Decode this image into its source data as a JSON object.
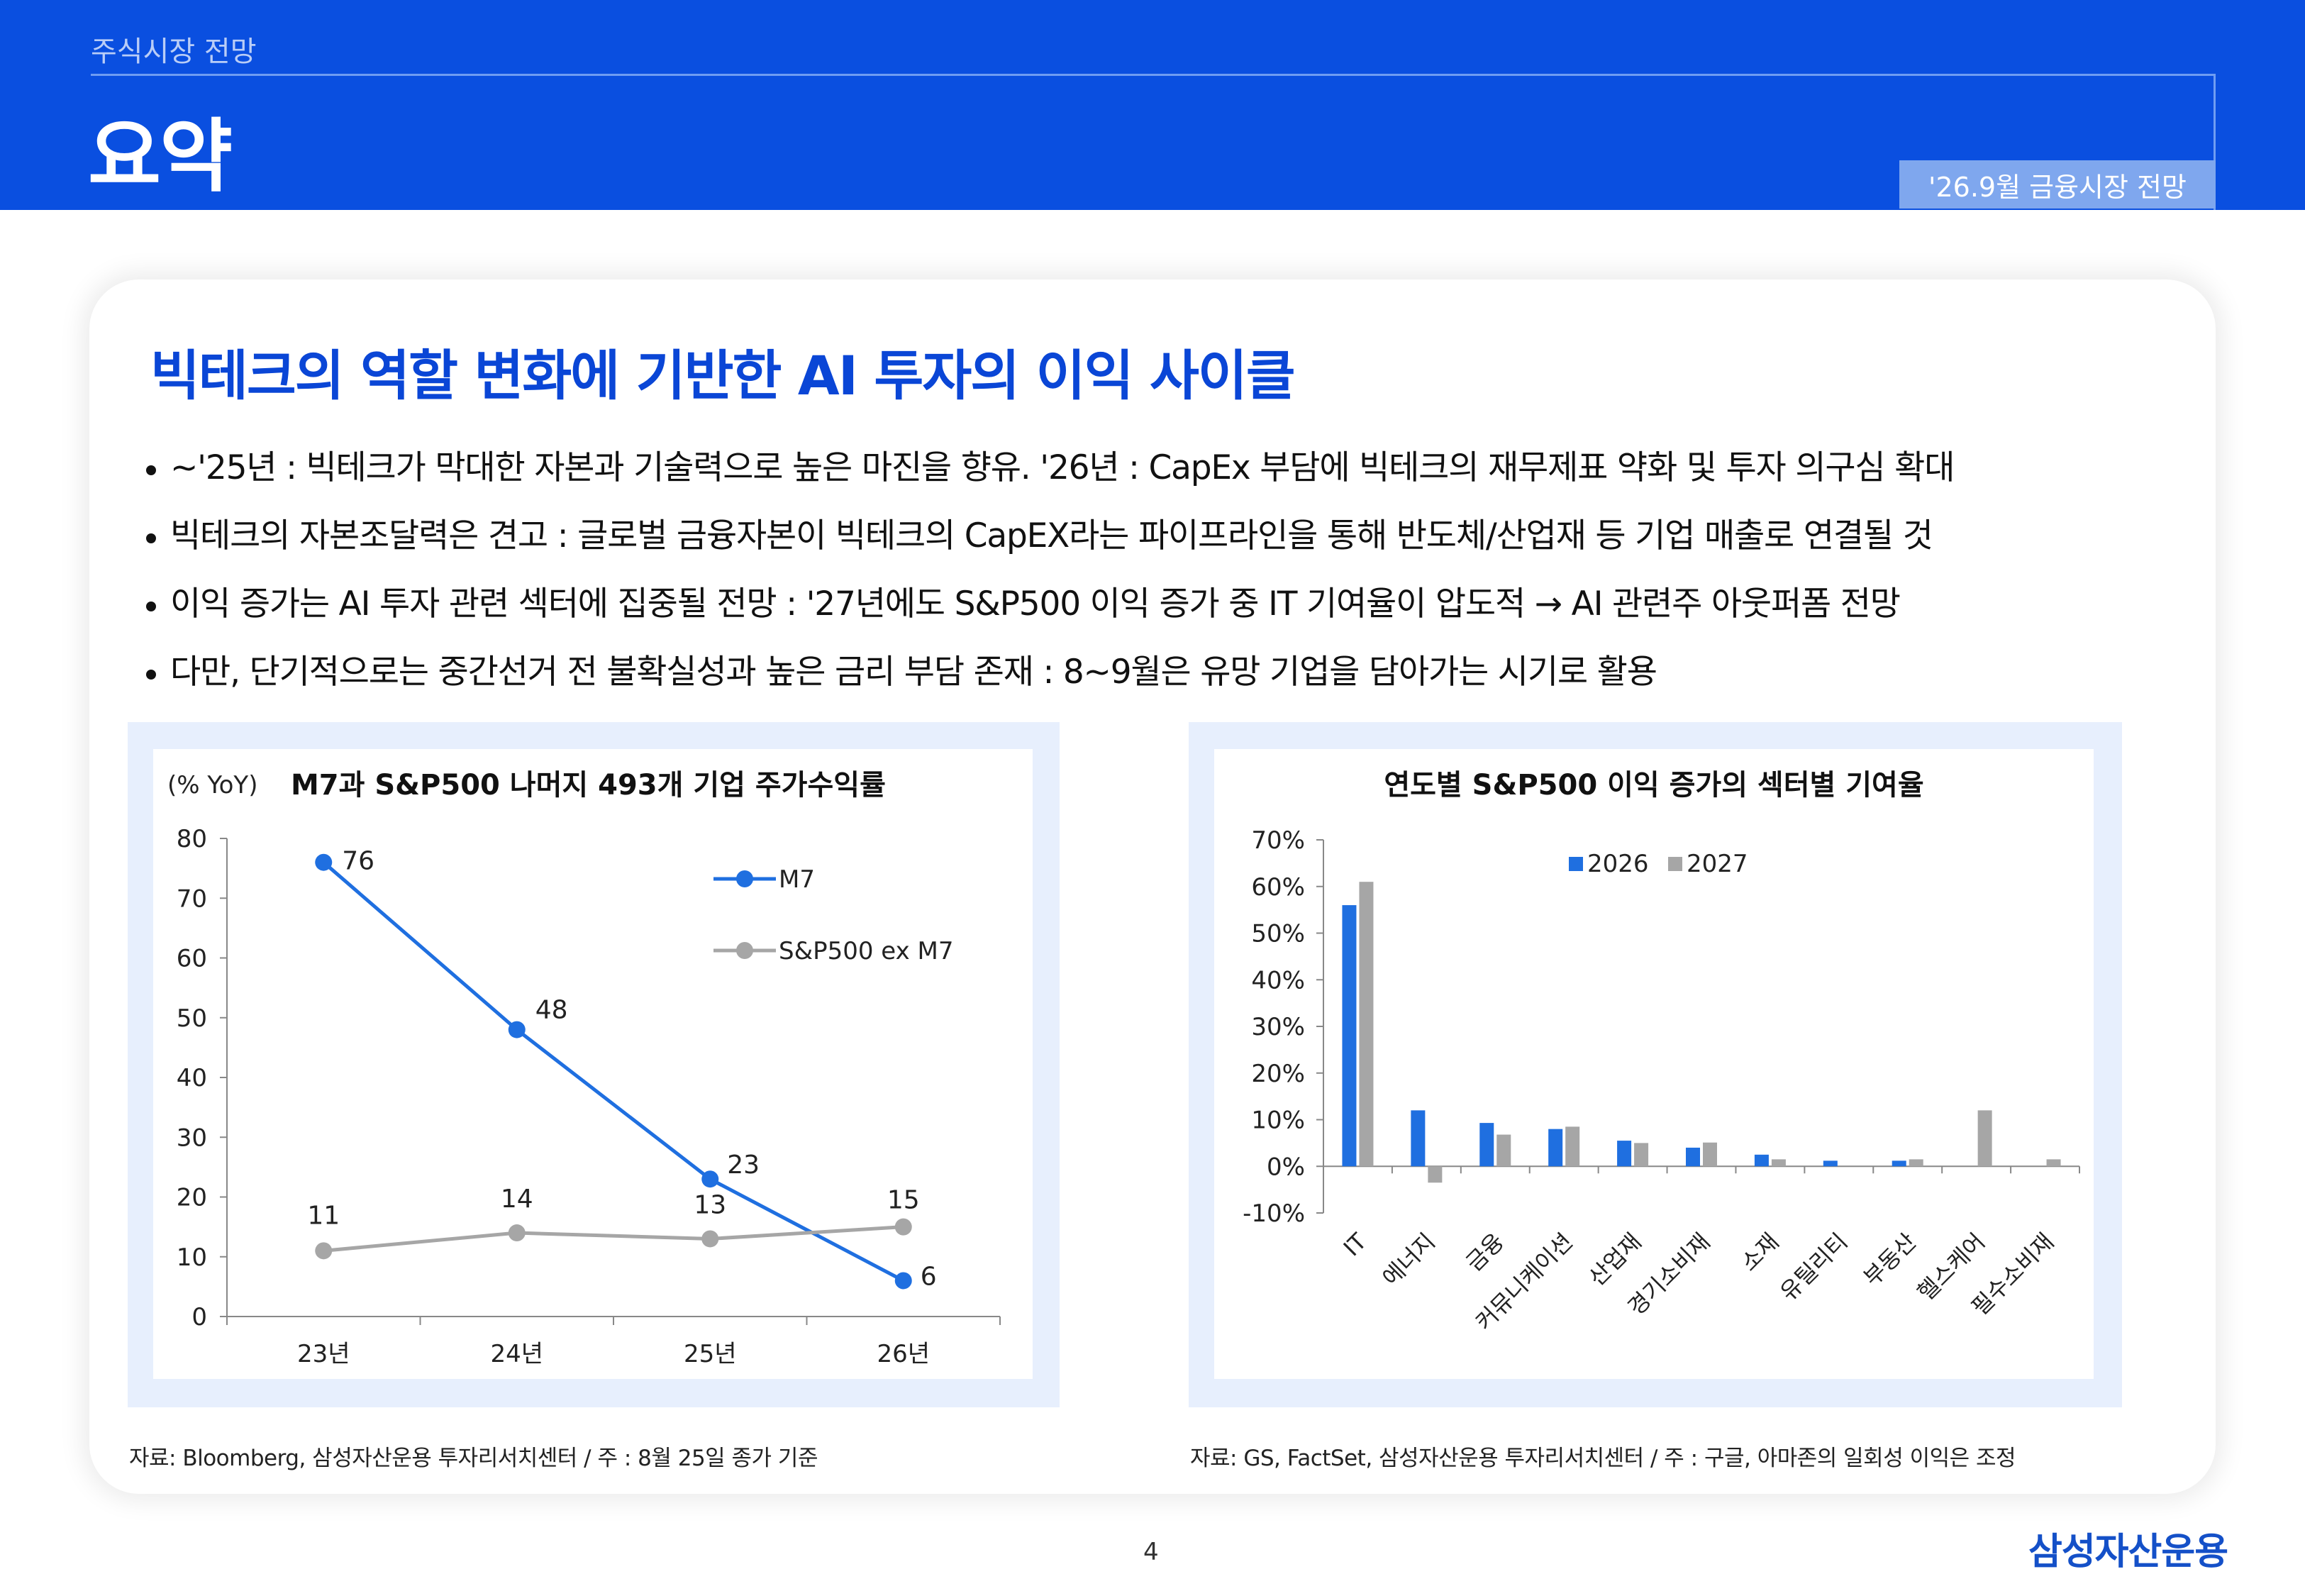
{
  "header": {
    "section": "주식시장 전망",
    "title": "요약",
    "report": "'26.9월 금융시장 전망"
  },
  "headline": "빅테크의 역할 변화에 기반한 AI 투자의 이익 사이클",
  "bullets": [
    "~'25년 : 빅테크가 막대한 자본과 기술력으로 높은 마진을 향유. '26년 : CapEx 부담에 빅테크의 재무제표 약화 및 투자 의구심 확대",
    "빅테크의 자본조달력은 견고 : 글로벌 금융자본이 빅테크의 CapEX라는 파이프라인을 통해 반도체/산업재 등 기업 매출로 연결될 것",
    "이익 증가는 AI 투자 관련 섹터에 집중될 전망 : '27년에도 S&P500 이익 증가 중 IT 기여율이 압도적 → AI 관련주 아웃퍼폼 전망",
    "다만, 단기적으로는 중간선거 전 불확실성과 높은 금리 부담 존재 : 8~9월은 유망 기업을 담아가는 시기로 활용"
  ],
  "colors": {
    "header_blue": "#0a4fe0",
    "headline_blue": "#0a46d6",
    "series_blue": "#1f6fe0",
    "series_gray": "#a6a6a6"
  },
  "chart_data": [
    {
      "type": "line",
      "title": "M7과 S&P500 나머지 493개 기업 주가수익률",
      "ylabel": "(% YoY)",
      "x": [
        "23년",
        "24년",
        "25년",
        "26년"
      ],
      "ylim": [
        0,
        80
      ],
      "yticks": [
        "0",
        "10",
        "20",
        "30",
        "40",
        "50",
        "60",
        "70",
        "80"
      ],
      "legend_position": "top-right",
      "series": [
        {
          "name": "M7",
          "values": [
            76,
            48,
            23,
            6
          ],
          "color": "#1f6fe0"
        },
        {
          "name": "S&P500 ex M7",
          "values": [
            11,
            14,
            13,
            15
          ],
          "color": "#a6a6a6"
        }
      ]
    },
    {
      "type": "bar",
      "title": "연도별 S&P500 이익 증가의 섹터별 기여율",
      "categories": [
        "IT",
        "에너지",
        "금융",
        "커뮤니케이션",
        "산업재",
        "경기소비재",
        "소재",
        "유틸리티",
        "부동산",
        "헬스케어",
        "필수소비재"
      ],
      "ylim": [
        -10,
        70
      ],
      "yticks": [
        "-10%",
        "0%",
        "10%",
        "20%",
        "30%",
        "40%",
        "50%",
        "60%",
        "70%"
      ],
      "legend_position": "top",
      "series": [
        {
          "name": "2026",
          "values": [
            56,
            12,
            9.3,
            8,
            5.5,
            4,
            2.5,
            1.2,
            1.2,
            0,
            0
          ],
          "color": "#1f6fe0"
        },
        {
          "name": "2027",
          "values": [
            61,
            -3.5,
            6.8,
            8.5,
            5,
            5.1,
            1.5,
            0,
            1.5,
            12,
            1.5
          ],
          "color": "#a6a6a6"
        }
      ]
    }
  ],
  "sources": {
    "left": "자료: Bloomberg, 삼성자산운용 투자리서치센터 / 주 : 8월 25일 종가 기준",
    "right": "자료: GS, FactSet, 삼성자산운용 투자리서치센터 / 주 : 구글, 아마존의 일회성 이익은 조정"
  },
  "page_number": "4",
  "brand": "삼성자산운용"
}
